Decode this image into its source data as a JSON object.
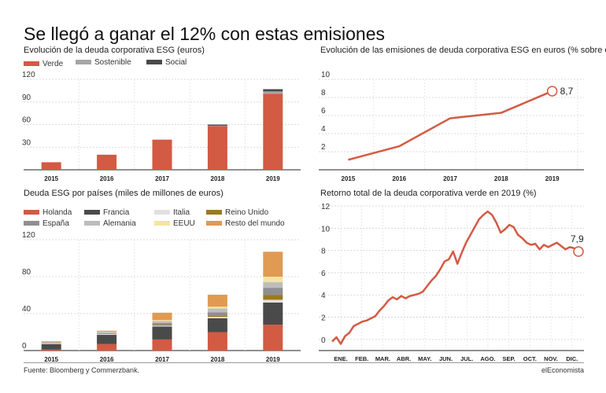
{
  "title": "Se llegó a ganar el 12% con estas emisiones",
  "source": "Fuente: Bloomberg y Commerzbank.",
  "brand": "elEconomista",
  "chart_data": [
    {
      "id": "esg_debt",
      "type": "bar",
      "title": "Evolución de la deuda corporativa ESG (euros)",
      "categories": [
        "2015",
        "2016",
        "2017",
        "2018",
        "2019"
      ],
      "ylim": [
        0,
        120
      ],
      "yticks": [
        "120",
        "90",
        "60",
        "30"
      ],
      "series": [
        {
          "name": "Verde",
          "color": "#d35a43",
          "values": [
            10,
            20,
            40,
            58,
            101
          ]
        },
        {
          "name": "Sostenible",
          "color": "#a6a6a6",
          "values": [
            0,
            0,
            0,
            0.5,
            3
          ]
        },
        {
          "name": "Social",
          "color": "#4a4a4a",
          "values": [
            0,
            0,
            0,
            1.5,
            3
          ]
        }
      ]
    },
    {
      "id": "esg_share",
      "type": "line",
      "title": "Evolución de las emisiones de deuda corporativa ESG en euros (% sobre el total)",
      "x": [
        "2015",
        "2016",
        "2017",
        "2018",
        "2019"
      ],
      "values": [
        1.1,
        2.6,
        5.7,
        6.3,
        8.7
      ],
      "ylim": [
        0,
        10
      ],
      "yticks": [
        "10",
        "8",
        "6",
        "4",
        "2"
      ],
      "last_label": "8,7",
      "color": "#d35a43"
    },
    {
      "id": "country",
      "type": "bar",
      "title": "Deuda ESG por países (miles de millones de euros)",
      "categories": [
        "2015",
        "2016",
        "2017",
        "2018",
        "2019"
      ],
      "ylim": [
        0,
        120
      ],
      "yticks": [
        "120",
        "80",
        "40",
        "0"
      ],
      "series": [
        {
          "name": "Holanda",
          "color": "#d35a43",
          "values": [
            1,
            7,
            12,
            20,
            28
          ]
        },
        {
          "name": "Francia",
          "color": "#4a4a4a",
          "values": [
            6,
            10,
            14,
            15,
            24
          ]
        },
        {
          "name": "Italia",
          "color": "#e3dfe0",
          "values": [
            0.5,
            1,
            1,
            1.5,
            3
          ]
        },
        {
          "name": "Reino Unido",
          "color": "#9a7b1c",
          "values": [
            0,
            0,
            1,
            1,
            5
          ]
        },
        {
          "name": "España",
          "color": "#8f8f8f",
          "values": [
            0.5,
            1,
            2,
            4,
            8
          ]
        },
        {
          "name": "Alemania",
          "color": "#bdbdbd",
          "values": [
            1,
            1,
            2,
            4,
            6
          ]
        },
        {
          "name": "EEUU",
          "color": "#f5e4a0",
          "values": [
            0,
            0.5,
            1,
            2,
            6
          ]
        },
        {
          "name": "Resto del mundo",
          "color": "#e09a52",
          "values": [
            1,
            1,
            8,
            13,
            27
          ]
        }
      ]
    },
    {
      "id": "green_return",
      "type": "line",
      "title": "Retorno total de la deuda corporativa verde en 2019 (%)",
      "months": [
        "ENE.",
        "FEB.",
        "MAR.",
        "ABR.",
        "MAY.",
        "JUN.",
        "JUL.",
        "AGO.",
        "SEP.",
        "OCT.",
        "NOV.",
        "DIC."
      ],
      "ylim": [
        -1,
        12
      ],
      "yticks": [
        "12",
        "10",
        "8",
        "6",
        "4",
        "2",
        "0"
      ],
      "x": [
        0,
        0.2,
        0.4,
        0.6,
        0.8,
        1.0,
        1.2,
        1.4,
        1.6,
        1.8,
        2.0,
        2.2,
        2.4,
        2.6,
        2.8,
        3.0,
        3.2,
        3.4,
        3.6,
        3.8,
        4.0,
        4.2,
        4.4,
        4.6,
        4.8,
        5.0,
        5.2,
        5.4,
        5.6,
        5.8,
        6.0,
        6.2,
        6.4,
        6.6,
        6.8,
        7.0,
        7.2,
        7.4,
        7.6,
        7.8,
        8.0,
        8.2,
        8.4,
        8.6,
        8.8,
        9.0,
        9.2,
        9.4,
        9.6,
        9.8,
        10.0,
        10.2,
        10.4,
        10.6,
        10.8,
        11.0,
        11.2,
        11.4
      ],
      "values": [
        -0.2,
        0.2,
        -0.4,
        0.3,
        0.6,
        1.2,
        1.4,
        1.6,
        1.7,
        1.9,
        2.1,
        2.6,
        3.0,
        3.5,
        3.8,
        3.6,
        3.9,
        3.7,
        3.9,
        4.0,
        4.1,
        4.3,
        4.8,
        5.3,
        5.7,
        6.3,
        7.0,
        7.2,
        7.9,
        6.8,
        7.8,
        8.7,
        9.4,
        10.1,
        10.8,
        11.2,
        11.5,
        11.2,
        10.5,
        9.6,
        9.9,
        10.3,
        10.1,
        9.4,
        9.1,
        8.7,
        8.5,
        8.6,
        8.1,
        8.5,
        8.3,
        8.5,
        8.7,
        8.4,
        8.1,
        8.3,
        8.2,
        7.9
      ],
      "last_label": "7,9",
      "color": "#d35a43"
    }
  ]
}
